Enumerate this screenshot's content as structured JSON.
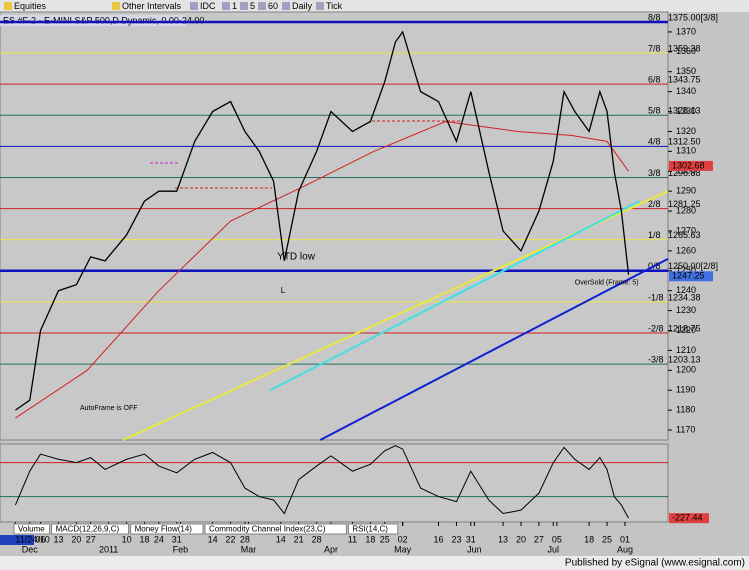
{
  "toolbar": [
    "Equities",
    "Other Intervals",
    "IDC",
    "1",
    "5",
    "60",
    "Daily",
    "Tick"
  ],
  "tabs": [
    "Volume",
    "MACD(12,26,9,C)",
    "Money Flow(14)",
    "Commodity Channel Index(23,C)",
    "RSI(14,C)"
  ],
  "footer": "Published by eSignal (www.esignal.com)",
  "chart_data": {
    "type": "line",
    "title": "ES #F-2 - E-MINI S&P 500,D Dynamic, 0.00-24.00",
    "color": "#000000",
    "x": [
      0,
      4,
      7,
      12,
      17,
      21,
      25,
      31,
      36,
      40,
      45,
      50,
      55,
      60,
      64,
      68,
      72,
      75,
      79,
      84,
      88,
      94,
      99,
      103,
      106,
      108,
      113,
      118,
      123,
      127,
      132,
      136,
      141,
      146,
      150,
      153,
      156,
      160,
      163,
      165,
      167,
      169,
      171
    ],
    "values": [
      1180,
      1185,
      1220,
      1240,
      1243,
      1257,
      1255,
      1268,
      1285,
      1290,
      1290,
      1315,
      1330,
      1335,
      1320,
      1310,
      1295,
      1255,
      1290,
      1310,
      1330,
      1320,
      1325,
      1345,
      1365,
      1370,
      1340,
      1335,
      1315,
      1340,
      1300,
      1270,
      1260,
      1280,
      1305,
      1340,
      1330,
      1320,
      1340,
      1330,
      1300,
      1280,
      1248
    ],
    "xlim": [
      -4.3,
      182
    ],
    "ylim": [
      1165,
      1380
    ],
    "yticks": [
      1170,
      1180,
      1190,
      1200,
      1210,
      1220,
      1230,
      1240,
      1250,
      1260,
      1270,
      1280,
      1290,
      1300,
      1310,
      1320,
      1330,
      1340,
      1350,
      1360,
      1370
    ],
    "xticks": [
      {
        "value": 0,
        "label": "11/24/10"
      },
      {
        "value": 7,
        "label": "06"
      },
      {
        "value": 12,
        "label": "13"
      },
      {
        "value": 17,
        "label": "20"
      },
      {
        "value": 21,
        "label": "27"
      },
      {
        "value": 31,
        "label": "10"
      },
      {
        "value": 36,
        "label": "18"
      },
      {
        "value": 40,
        "label": "24"
      },
      {
        "value": 45,
        "label": "31"
      },
      {
        "value": 55,
        "label": "14"
      },
      {
        "value": 60,
        "label": "22"
      },
      {
        "value": 64,
        "label": "28"
      },
      {
        "value": 74,
        "label": "14"
      },
      {
        "value": 79,
        "label": "21"
      },
      {
        "value": 84,
        "label": "28"
      },
      {
        "value": 94,
        "label": "11"
      },
      {
        "value": 99,
        "label": "18"
      },
      {
        "value": 103,
        "label": "25"
      },
      {
        "value": 108,
        "label": "02"
      },
      {
        "value": 118,
        "label": "16"
      },
      {
        "value": 123,
        "label": "23"
      },
      {
        "value": 127,
        "label": "31"
      },
      {
        "value": 136,
        "label": "13"
      },
      {
        "value": 141,
        "label": "20"
      },
      {
        "value": 146,
        "label": "27"
      },
      {
        "value": 151,
        "label": "05"
      },
      {
        "value": 160,
        "label": "18"
      },
      {
        "value": 165,
        "label": "25"
      },
      {
        "value": 170,
        "label": "01"
      }
    ],
    "month_ticks": [
      {
        "value": 4,
        "label": "Dec"
      },
      {
        "value": 26,
        "label": "2011"
      },
      {
        "value": 46,
        "label": "Feb"
      },
      {
        "value": 65,
        "label": "Mar"
      },
      {
        "value": 88,
        "label": "Apr"
      },
      {
        "value": 108,
        "label": "May"
      },
      {
        "value": 128,
        "label": "Jun"
      },
      {
        "value": 150,
        "label": "Jul"
      },
      {
        "value": 170,
        "label": "Aug"
      }
    ],
    "levels": [
      {
        "frac": "8/8",
        "value": 1375,
        "label": "1375.00[3/8]",
        "color": "#1010c0"
      },
      {
        "frac": "7/8",
        "value": 1359.38,
        "label": "1359.38",
        "color": "#e8e840"
      },
      {
        "frac": "6/8",
        "value": 1343.75,
        "label": "1343.75",
        "color": "#d02020"
      },
      {
        "frac": "5/8",
        "value": 1328.13,
        "label": "1328.13",
        "color": "#207060"
      },
      {
        "frac": "4/8",
        "value": 1312.5,
        "label": "1312.50",
        "color": "#1010c0"
      },
      {
        "frac": "3/8",
        "value": 1296.88,
        "label": "1296.88",
        "color": "#207060"
      },
      {
        "frac": "2/8",
        "value": 1281.25,
        "label": "1281.25",
        "color": "#d02020"
      },
      {
        "frac": "1/8",
        "value": 1265.63,
        "label": "1265.63",
        "color": "#e8e840"
      },
      {
        "frac": "0/8",
        "value": 1250,
        "label": "1250.00[2/8]",
        "color": "#1010c0"
      },
      {
        "frac": "-1/8",
        "value": 1234.38,
        "label": "1234.38",
        "color": "#e8e840"
      },
      {
        "frac": "-2/8",
        "value": 1218.75,
        "label": "1218.75",
        "color": "#d02020"
      },
      {
        "frac": "-3/8",
        "value": 1203.13,
        "label": "1203.13",
        "color": "#207060"
      }
    ],
    "markers": [
      {
        "value": 1302.68,
        "color": "#e04040"
      },
      {
        "value": 1247.25,
        "color": "#4070e0"
      }
    ],
    "overlays": [
      {
        "color": "#d02020",
        "x": [
          0,
          20,
          40,
          60,
          80,
          100,
          120,
          140,
          155,
          165,
          171
        ],
        "values": [
          1176,
          1200,
          1240,
          1275,
          1292,
          1310,
          1325,
          1320,
          1318,
          1315,
          1300
        ]
      },
      {
        "color": "#e8e840",
        "x": [
          30,
          182
        ],
        "values": [
          1165,
          1290
        ]
      },
      {
        "color": "#40e0e8",
        "x": [
          71,
          174
        ],
        "values": [
          1190,
          1285
        ]
      },
      {
        "color": "#1020d0",
        "x": [
          85,
          182
        ],
        "values": [
          1165,
          1256
        ]
      }
    ],
    "annotations": [
      "YTD low",
      "L",
      "OverSold (Frame: 5)",
      "AutoFrame is OFF"
    ],
    "oscillator": {
      "ylim": [
        -250,
        210
      ],
      "color": "#000000",
      "levels": [
        {
          "value": 100,
          "color": "#d02020"
        },
        {
          "value": -100,
          "color": "#207050"
        }
      ],
      "values": [
        -150,
        50,
        150,
        120,
        100,
        130,
        60,
        120,
        150,
        80,
        40,
        120,
        160,
        100,
        -50,
        -100,
        -120,
        -200,
        0,
        80,
        140,
        50,
        90,
        170,
        200,
        180,
        -50,
        -100,
        -130,
        50,
        -120,
        -200,
        -180,
        -80,
        100,
        190,
        120,
        60,
        130,
        60,
        -100,
        -150,
        -227.44
      ]
    }
  }
}
